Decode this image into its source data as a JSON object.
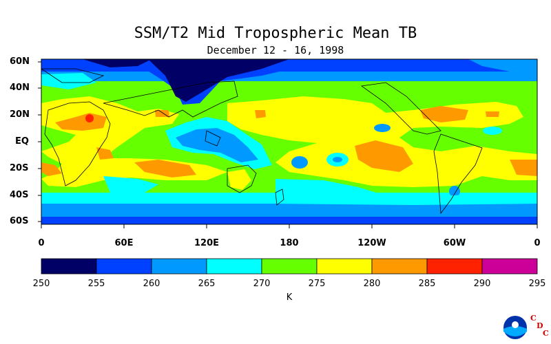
{
  "title": "SSM/T2 Mid Tropospheric Mean TB",
  "subtitle": "December 12 - 16, 1998",
  "lat_labels": [
    "60N",
    "40N",
    "20N",
    "EQ",
    "20S",
    "40S",
    "60S"
  ],
  "lon_labels": [
    "0",
    "60E",
    "120E",
    "180",
    "120W",
    "60W",
    "0"
  ],
  "colorbar": {
    "ticks": [
      "250",
      "255",
      "260",
      "265",
      "270",
      "275",
      "280",
      "285",
      "290",
      "295"
    ],
    "unit": "K",
    "colors": [
      "#000066",
      "#0040ff",
      "#0099ff",
      "#00ffff",
      "#66ff00",
      "#ffff00",
      "#ff9900",
      "#ff2200",
      "#cc0099"
    ]
  },
  "logo": {
    "name": "NOAA",
    "letters": [
      "C",
      "D",
      "C"
    ]
  }
}
